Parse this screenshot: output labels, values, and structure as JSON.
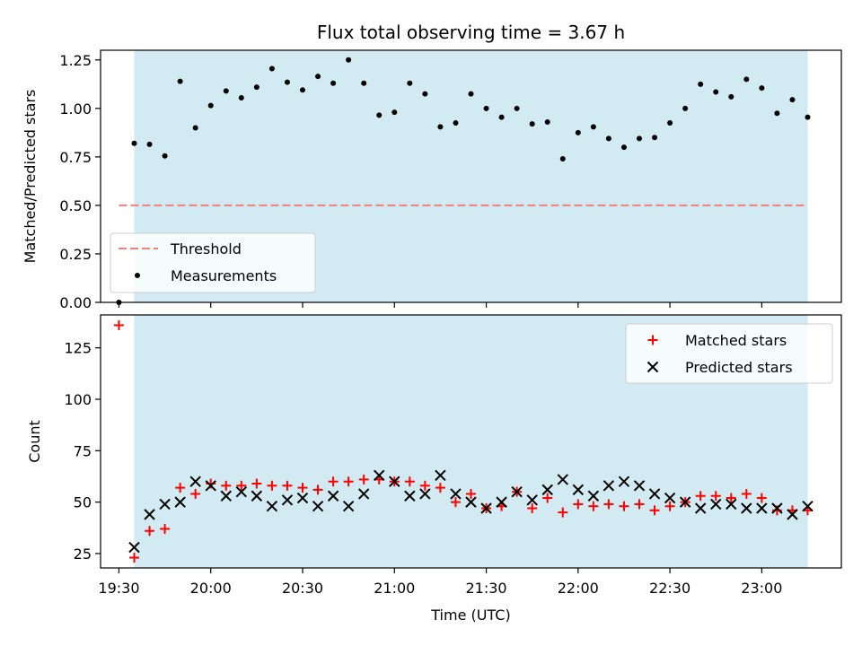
{
  "chart_data": [
    {
      "type": "scatter",
      "title": "Flux total observing time = 3.67 h",
      "xlabel": "",
      "ylabel": "Matched/Predicted stars",
      "ylim": [
        0,
        1.3
      ],
      "yticks": [
        "0.00",
        "0.25",
        "0.50",
        "0.75",
        "1.00",
        "1.25"
      ],
      "ytick_values": [
        0,
        0.25,
        0.5,
        0.75,
        1.0,
        1.25
      ],
      "xlim": [
        "19:24",
        "23:26"
      ],
      "shaded_region": {
        "start": "19:35",
        "end": "23:15",
        "color": "#add8e6"
      },
      "threshold": {
        "name": "Threshold",
        "value": 0.5,
        "start": "19:30",
        "end": "23:15",
        "color": "#f08080"
      },
      "legend": {
        "placement": "lower-left",
        "entries": [
          "Threshold",
          "Measurements"
        ]
      },
      "series": [
        {
          "name": "Measurements",
          "color": "#000000",
          "marker": "dot",
          "x": [
            "19:30",
            "19:35",
            "19:40",
            "19:45",
            "19:50",
            "19:55",
            "20:00",
            "20:05",
            "20:10",
            "20:15",
            "20:20",
            "20:25",
            "20:30",
            "20:35",
            "20:40",
            "20:45",
            "20:50",
            "20:55",
            "21:00",
            "21:05",
            "21:10",
            "21:15",
            "21:20",
            "21:25",
            "21:30",
            "21:35",
            "21:40",
            "21:45",
            "21:50",
            "21:55",
            "22:00",
            "22:05",
            "22:10",
            "22:15",
            "22:20",
            "22:25",
            "22:30",
            "22:35",
            "22:40",
            "22:45",
            "22:50",
            "22:55",
            "23:00",
            "23:05",
            "23:10",
            "23:15"
          ],
          "y": [
            0.0,
            0.82,
            0.815,
            0.755,
            1.14,
            0.9,
            1.015,
            1.09,
            1.055,
            1.11,
            1.205,
            1.135,
            1.095,
            1.165,
            1.13,
            1.25,
            1.13,
            0.965,
            0.98,
            1.13,
            1.075,
            0.905,
            0.925,
            1.075,
            1.0,
            0.955,
            1.0,
            0.92,
            0.93,
            0.74,
            0.875,
            0.905,
            0.845,
            0.8,
            0.845,
            0.85,
            0.925,
            1.0,
            1.125,
            1.085,
            1.06,
            1.15,
            1.105,
            0.975,
            1.045,
            0.955
          ]
        }
      ]
    },
    {
      "type": "scatter",
      "title": "",
      "xlabel": "Time (UTC)",
      "ylabel": "Count",
      "ylim": [
        18,
        141
      ],
      "yticks": [
        "25",
        "50",
        "75",
        "100",
        "125"
      ],
      "ytick_values": [
        25,
        50,
        75,
        100,
        125
      ],
      "xlim": [
        "19:24",
        "23:26"
      ],
      "xticks": [
        "19:30",
        "20:00",
        "20:30",
        "21:00",
        "21:30",
        "22:00",
        "22:30",
        "23:00"
      ],
      "shaded_region": {
        "start": "19:35",
        "end": "23:15",
        "color": "#add8e6"
      },
      "legend": {
        "placement": "upper-right",
        "entries": [
          "Matched stars",
          "Predicted stars"
        ]
      },
      "series": [
        {
          "name": "Matched stars",
          "color": "#ff0000",
          "marker": "plus",
          "x": [
            "19:30",
            "19:35",
            "19:40",
            "19:45",
            "19:50",
            "19:55",
            "20:00",
            "20:05",
            "20:10",
            "20:15",
            "20:20",
            "20:25",
            "20:30",
            "20:35",
            "20:40",
            "20:45",
            "20:50",
            "20:55",
            "21:00",
            "21:05",
            "21:10",
            "21:15",
            "21:20",
            "21:25",
            "21:30",
            "21:35",
            "21:40",
            "21:45",
            "21:50",
            "21:55",
            "22:00",
            "22:05",
            "22:10",
            "22:15",
            "22:20",
            "22:25",
            "22:30",
            "22:35",
            "22:40",
            "22:45",
            "22:50",
            "22:55",
            "23:00",
            "23:05",
            "23:10",
            "23:15"
          ],
          "y": [
            136,
            23,
            36,
            37,
            57,
            54,
            59,
            58,
            58,
            59,
            58,
            58,
            57,
            56,
            60,
            60,
            61,
            61,
            60,
            60,
            58,
            57,
            50,
            54,
            47,
            48,
            55,
            47,
            52,
            45,
            49,
            48,
            49,
            48,
            49,
            46,
            48,
            50,
            53,
            53,
            52,
            54,
            52,
            46,
            46,
            46
          ]
        },
        {
          "name": "Predicted stars",
          "color": "#000000",
          "marker": "x",
          "x": [
            "19:35",
            "19:40",
            "19:45",
            "19:50",
            "19:55",
            "20:00",
            "20:05",
            "20:10",
            "20:15",
            "20:20",
            "20:25",
            "20:30",
            "20:35",
            "20:40",
            "20:45",
            "20:50",
            "20:55",
            "21:00",
            "21:05",
            "21:10",
            "21:15",
            "21:20",
            "21:25",
            "21:30",
            "21:35",
            "21:40",
            "21:45",
            "21:50",
            "21:55",
            "22:00",
            "22:05",
            "22:10",
            "22:15",
            "22:20",
            "22:25",
            "22:30",
            "22:35",
            "22:40",
            "22:45",
            "22:50",
            "22:55",
            "23:00",
            "23:05",
            "23:10",
            "23:15"
          ],
          "y": [
            28,
            44,
            49,
            50,
            60,
            58,
            53,
            55,
            53,
            48,
            51,
            52,
            48,
            53,
            48,
            54,
            63,
            60,
            53,
            54,
            63,
            54,
            50,
            47,
            50,
            55,
            51,
            56,
            61,
            56,
            53,
            58,
            60,
            58,
            54,
            52,
            50,
            47,
            49,
            49,
            47,
            47,
            47,
            44,
            48
          ]
        }
      ]
    }
  ]
}
